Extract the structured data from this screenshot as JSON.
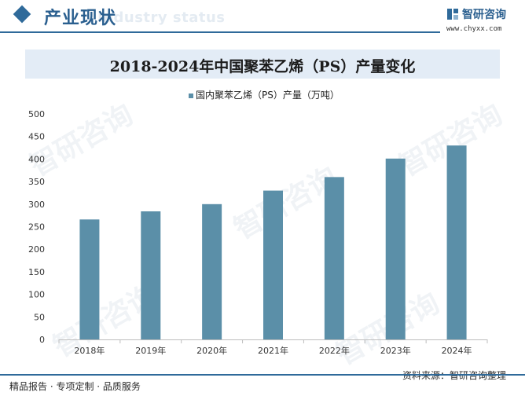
{
  "header": {
    "section_title": "产业现状",
    "ghost_title": "Industry status",
    "brand_name": "智研咨询",
    "brand_url": "www.chyxx.com"
  },
  "footer": {
    "left_text": "精品报告 · 专项定制 · 品质服务",
    "source": "资料来源：智研咨询整理"
  },
  "watermark": "智研咨询",
  "colors": {
    "bar": "#5b8fa8",
    "accent": "#2f6a9a",
    "title_band": "#e3ecf6"
  },
  "chart_data": {
    "type": "bar",
    "title": "2018-2024年中国聚苯乙烯（PS）产量变化",
    "categories": [
      "2018年",
      "2019年",
      "2020年",
      "2021年",
      "2022年",
      "2023年",
      "2024年"
    ],
    "series": [
      {
        "name": "国内聚苯乙烯（PS）产量（万吨）",
        "values": [
          266,
          284,
          300,
          330,
          360,
          401,
          430
        ]
      }
    ],
    "ylim": [
      0,
      500
    ],
    "yticks": [
      0,
      50,
      100,
      150,
      200,
      250,
      300,
      350,
      400,
      450,
      500
    ],
    "grid": false,
    "legend_position": "top-center"
  }
}
